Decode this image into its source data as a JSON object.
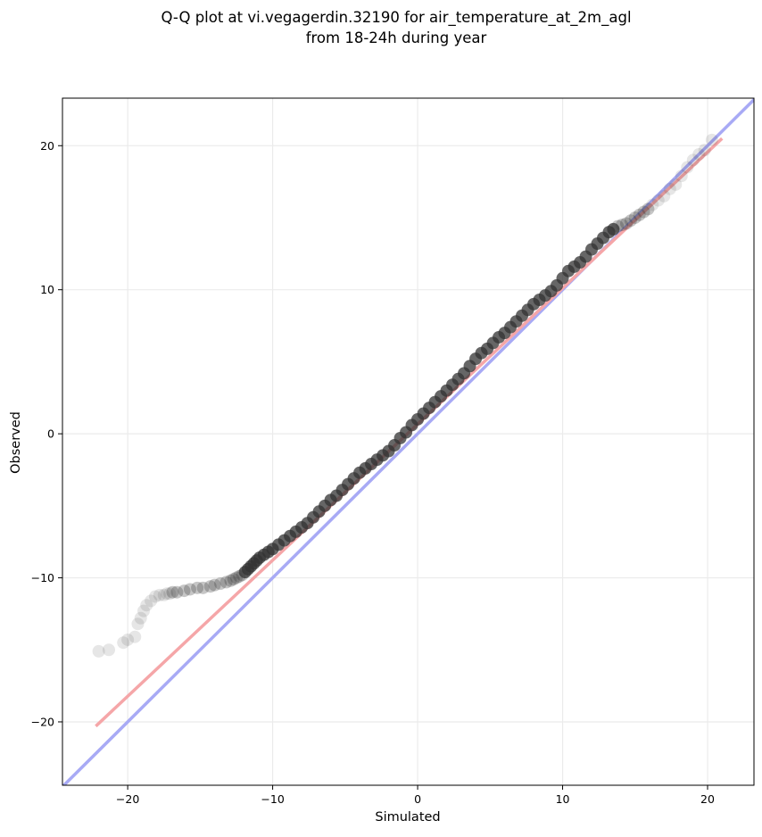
{
  "chart_data": {
    "type": "scatter",
    "title_line1": "Q-Q plot at vi.vegagerdin.32190 for air_temperature_at_2m_agl",
    "title_line2": "from 18-24h during year",
    "xlabel": "Simulated",
    "ylabel": "Observed",
    "xlim": [
      -24.5,
      23.2
    ],
    "ylim": [
      -24.4,
      23.3
    ],
    "grid": true,
    "x_ticks": [
      -20,
      -10,
      0,
      10,
      20
    ],
    "y_ticks": [
      -20,
      -10,
      0,
      10,
      20
    ],
    "x_tick_labels": [
      "−20",
      "−10",
      "0",
      "10",
      "20"
    ],
    "y_tick_labels": [
      "−20",
      "−10",
      "0",
      "10",
      "20"
    ],
    "point_color": "#333333",
    "identity_line_color": "#a8aaf5",
    "fit_line_color": "#f5a6a8",
    "fit_line": {
      "x": [
        -22.2,
        21.0
      ],
      "y": [
        -20.3,
        20.5
      ]
    },
    "points": {
      "x": [
        -22.0,
        -21.3,
        -20.3,
        -20.0,
        -19.5,
        -19.3,
        -19.1,
        -18.9,
        -18.7,
        -18.4,
        -18.1,
        -17.8,
        -17.5,
        -17.3,
        -17.1,
        -16.9,
        -16.6,
        -16.1,
        -15.7,
        -15.2,
        -14.8,
        -14.3,
        -14.0,
        -13.6,
        -13.2,
        -12.9,
        -12.7,
        -12.5,
        -12.3,
        -12.1,
        -11.9,
        -11.7,
        -11.5,
        -11.3,
        -11.1,
        -10.9,
        -10.6,
        -10.3,
        -10.0,
        -9.6,
        -9.2,
        -8.8,
        -8.4,
        -8.0,
        -7.6,
        -7.2,
        -6.8,
        -6.4,
        -6.0,
        -5.6,
        -5.2,
        -4.8,
        -4.4,
        -4.0,
        -3.6,
        -3.2,
        -2.8,
        -2.4,
        -2.0,
        -1.6,
        -1.2,
        -0.8,
        -0.4,
        0.0,
        0.4,
        0.8,
        1.2,
        1.6,
        2.0,
        2.4,
        2.8,
        3.2,
        3.6,
        4.0,
        4.4,
        4.8,
        5.2,
        5.6,
        6.0,
        6.4,
        6.8,
        7.2,
        7.6,
        8.0,
        8.4,
        8.8,
        9.2,
        9.6,
        10.0,
        10.4,
        10.8,
        11.2,
        11.6,
        12.0,
        12.4,
        12.8,
        13.2,
        13.5,
        13.8,
        14.1,
        14.4,
        14.7,
        15.0,
        15.3,
        15.6,
        15.9,
        16.2,
        16.6,
        17.0,
        17.4,
        17.8,
        18.2,
        18.6,
        19.0,
        19.4,
        19.8,
        20.3
      ],
      "y": [
        -15.1,
        -15.0,
        -14.5,
        -14.3,
        -14.1,
        -13.2,
        -12.8,
        -12.3,
        -11.9,
        -11.6,
        -11.3,
        -11.2,
        -11.2,
        -11.1,
        -11.1,
        -11.0,
        -11.0,
        -10.9,
        -10.8,
        -10.7,
        -10.7,
        -10.6,
        -10.5,
        -10.4,
        -10.3,
        -10.2,
        -10.1,
        -10.0,
        -9.9,
        -9.8,
        -9.6,
        -9.4,
        -9.2,
        -9.0,
        -8.8,
        -8.6,
        -8.4,
        -8.2,
        -8.0,
        -7.7,
        -7.4,
        -7.1,
        -6.8,
        -6.5,
        -6.2,
        -5.8,
        -5.4,
        -5.0,
        -4.6,
        -4.3,
        -3.9,
        -3.5,
        -3.1,
        -2.7,
        -2.4,
        -2.1,
        -1.8,
        -1.5,
        -1.2,
        -0.8,
        -0.3,
        0.1,
        0.6,
        1.0,
        1.4,
        1.8,
        2.2,
        2.6,
        3.0,
        3.4,
        3.8,
        4.2,
        4.7,
        5.2,
        5.6,
        5.9,
        6.3,
        6.7,
        7.0,
        7.4,
        7.8,
        8.2,
        8.6,
        9.0,
        9.3,
        9.6,
        9.9,
        10.3,
        10.8,
        11.3,
        11.6,
        11.9,
        12.3,
        12.8,
        13.2,
        13.6,
        14.0,
        14.2,
        14.4,
        14.5,
        14.6,
        14.8,
        15.0,
        15.2,
        15.4,
        15.6,
        15.9,
        16.2,
        16.5,
        17.0,
        17.3,
        17.9,
        18.5,
        19.0,
        19.4,
        19.7,
        20.4
      ]
    }
  }
}
